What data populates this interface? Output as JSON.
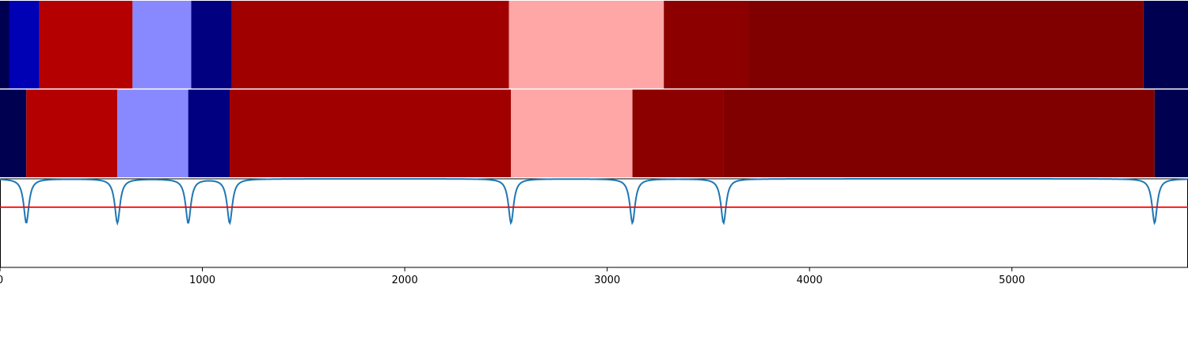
{
  "chart_data": {
    "type": "heatmap",
    "title": "",
    "xlabel": "",
    "ylabel": "",
    "xlim": [
      0,
      5870
    ],
    "x_ticks": [
      0,
      1000,
      2000,
      3000,
      4000,
      5000
    ],
    "x_tick_labels": [
      "0",
      "1000",
      "2000",
      "3000",
      "4000",
      "5000"
    ],
    "rows": [
      {
        "segments": [
          {
            "start": 0,
            "end": 45,
            "color": "#000050"
          },
          {
            "start": 45,
            "end": 195,
            "color": "#0000b4"
          },
          {
            "start": 195,
            "end": 655,
            "color": "#b40000"
          },
          {
            "start": 655,
            "end": 945,
            "color": "#8888ff"
          },
          {
            "start": 945,
            "end": 1145,
            "color": "#000080"
          },
          {
            "start": 1145,
            "end": 2515,
            "color": "#a00000"
          },
          {
            "start": 2515,
            "end": 3280,
            "color": "#ffa6a6"
          },
          {
            "start": 3280,
            "end": 3700,
            "color": "#8c0000"
          },
          {
            "start": 3700,
            "end": 5650,
            "color": "#800000"
          },
          {
            "start": 5650,
            "end": 5870,
            "color": "#000050"
          }
        ]
      },
      {
        "segments": [
          {
            "start": 0,
            "end": 130,
            "color": "#000050"
          },
          {
            "start": 130,
            "end": 580,
            "color": "#b40000"
          },
          {
            "start": 580,
            "end": 930,
            "color": "#8888ff"
          },
          {
            "start": 930,
            "end": 1135,
            "color": "#000080"
          },
          {
            "start": 1135,
            "end": 2525,
            "color": "#a00000"
          },
          {
            "start": 2525,
            "end": 3125,
            "color": "#ffa6a6"
          },
          {
            "start": 3125,
            "end": 3575,
            "color": "#8c0000"
          },
          {
            "start": 3575,
            "end": 5705,
            "color": "#800000"
          },
          {
            "start": 5705,
            "end": 5870,
            "color": "#000050"
          }
        ]
      }
    ],
    "signal": {
      "color": "#1f77b4",
      "baseline": 0.0,
      "dip_depth": 0.5,
      "dips": [
        130,
        580,
        930,
        1135,
        2525,
        3125,
        3575,
        5705
      ]
    },
    "threshold": {
      "value": 0.68,
      "color": "#ff0000"
    },
    "panel_ylim": [
      0.0,
      1.0
    ],
    "grid": false,
    "legend": "none"
  }
}
